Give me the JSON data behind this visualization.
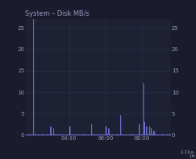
{
  "title": "System – Disk MB/s",
  "bg_color": "#1a1c2e",
  "plot_bg_color": "#1e2133",
  "text_color": "#9999bb",
  "grid_color": "#2e3050",
  "line_color": "#7777dd",
  "line_fill_color": "#4444aa",
  "ylim": [
    0,
    27
  ],
  "yticks": [
    0,
    5,
    10,
    15,
    20,
    25
  ],
  "xtick_labels": [
    "04:00",
    "06:00",
    "08:00"
  ],
  "title_fontsize": 6.0,
  "tick_fontsize": 5.0,
  "spike_positions": [
    0.055,
    0.175,
    0.195,
    0.305,
    0.455,
    0.555,
    0.575,
    0.655,
    0.785,
    0.815,
    0.82,
    0.835,
    0.855,
    0.87,
    0.88,
    0.89
  ],
  "spike_heights": [
    27.5,
    2.0,
    1.5,
    2.0,
    2.5,
    2.0,
    1.5,
    4.5,
    2.5,
    12.0,
    3.0,
    2.0,
    2.0,
    1.5,
    1.0,
    0.8
  ],
  "xtick_positions": [
    0.3,
    0.55,
    0.8
  ]
}
